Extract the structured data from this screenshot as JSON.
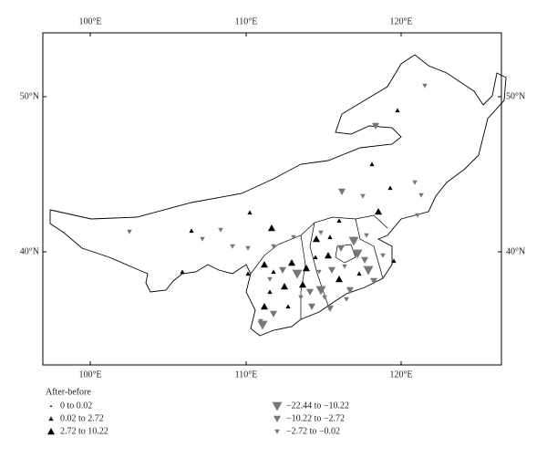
{
  "map": {
    "lon_labels": [
      "100°E",
      "110°E",
      "120°E"
    ],
    "lat_labels": [
      "50°N",
      "40°N"
    ],
    "legend": {
      "title": "After-before",
      "items": [
        "0 to 0.02",
        "0.02 to 2.72",
        "2.72 to 10.22",
        "−22.44 to −10.22",
        "−10.22 to −2.72",
        "−2.72 to −0.02"
      ]
    }
  }
}
